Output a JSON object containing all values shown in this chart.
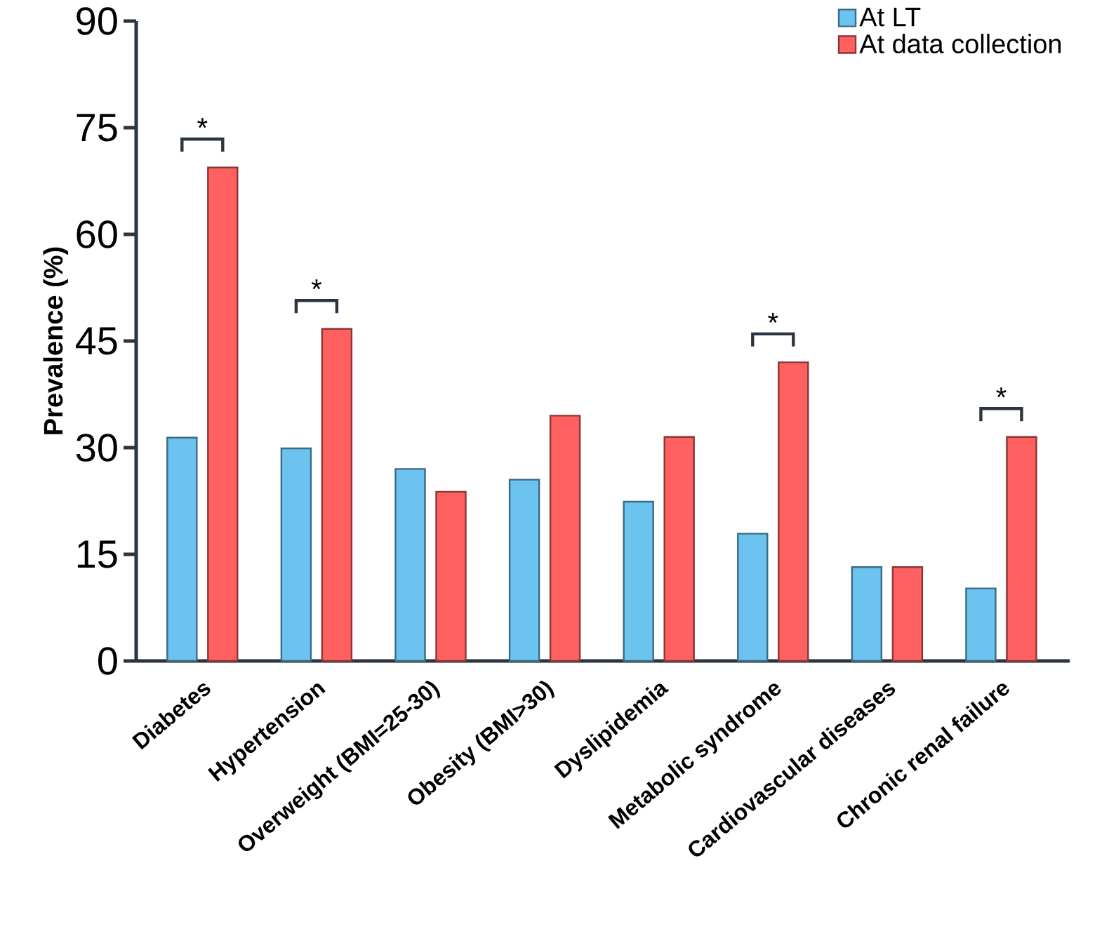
{
  "chart_data": {
    "type": "bar",
    "ylabel": "Prevalence (%)",
    "categories": [
      "Diabetes",
      "Hypertension",
      "Overweight (BMI=25-30)",
      "Obesity (BMI>30)",
      "Dyslipidemia",
      "Metabolic syndrome",
      "Cardiovascular diseases",
      "Chronic renal failure"
    ],
    "series": [
      {
        "name": "At LT",
        "color": "#6cc3f0",
        "values": [
          31.4,
          29.9,
          27.0,
          25.5,
          22.4,
          17.9,
          13.2,
          10.2
        ]
      },
      {
        "name": "At data collection",
        "color": "#ff6161",
        "values": [
          69.4,
          46.7,
          23.8,
          34.5,
          31.5,
          42.0,
          13.2,
          31.5
        ]
      }
    ],
    "ylim": [
      0,
      90
    ],
    "yticks": [
      0,
      15,
      30,
      45,
      60,
      75,
      90
    ],
    "legend": "top right",
    "grid": false,
    "annotations": [
      "*",
      "*",
      "*",
      "*"
    ]
  }
}
